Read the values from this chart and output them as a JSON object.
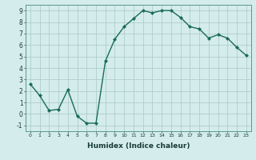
{
  "x": [
    0,
    1,
    2,
    3,
    4,
    5,
    6,
    7,
    8,
    9,
    10,
    11,
    12,
    13,
    14,
    15,
    16,
    17,
    18,
    19,
    20,
    21,
    22,
    23
  ],
  "y": [
    2.6,
    1.6,
    0.3,
    0.4,
    2.1,
    -0.2,
    -0.8,
    -0.8,
    4.6,
    6.5,
    7.6,
    8.3,
    9.0,
    8.8,
    9.0,
    9.0,
    8.4,
    7.6,
    7.4,
    6.6,
    6.9,
    6.6,
    5.8,
    5.1
  ],
  "line_color": "#1a6b5a",
  "marker": "D",
  "marker_size": 2.0,
  "bg_color": "#d4ecec",
  "grid_color": "#b0cccc",
  "xlabel": "Humidex (Indice chaleur)",
  "xlim": [
    -0.5,
    23.5
  ],
  "ylim": [
    -1.5,
    9.5
  ],
  "yticks": [
    -1,
    0,
    1,
    2,
    3,
    4,
    5,
    6,
    7,
    8,
    9
  ],
  "xticks": [
    0,
    1,
    2,
    3,
    4,
    5,
    6,
    7,
    8,
    9,
    10,
    11,
    12,
    13,
    14,
    15,
    16,
    17,
    18,
    19,
    20,
    21,
    22,
    23
  ],
  "xlabel_fontsize": 6.5,
  "xlabel_fontweight": "bold",
  "tick_fontsize_x": 4.5,
  "tick_fontsize_y": 5.5,
  "linewidth": 1.0,
  "linestyle": "-"
}
